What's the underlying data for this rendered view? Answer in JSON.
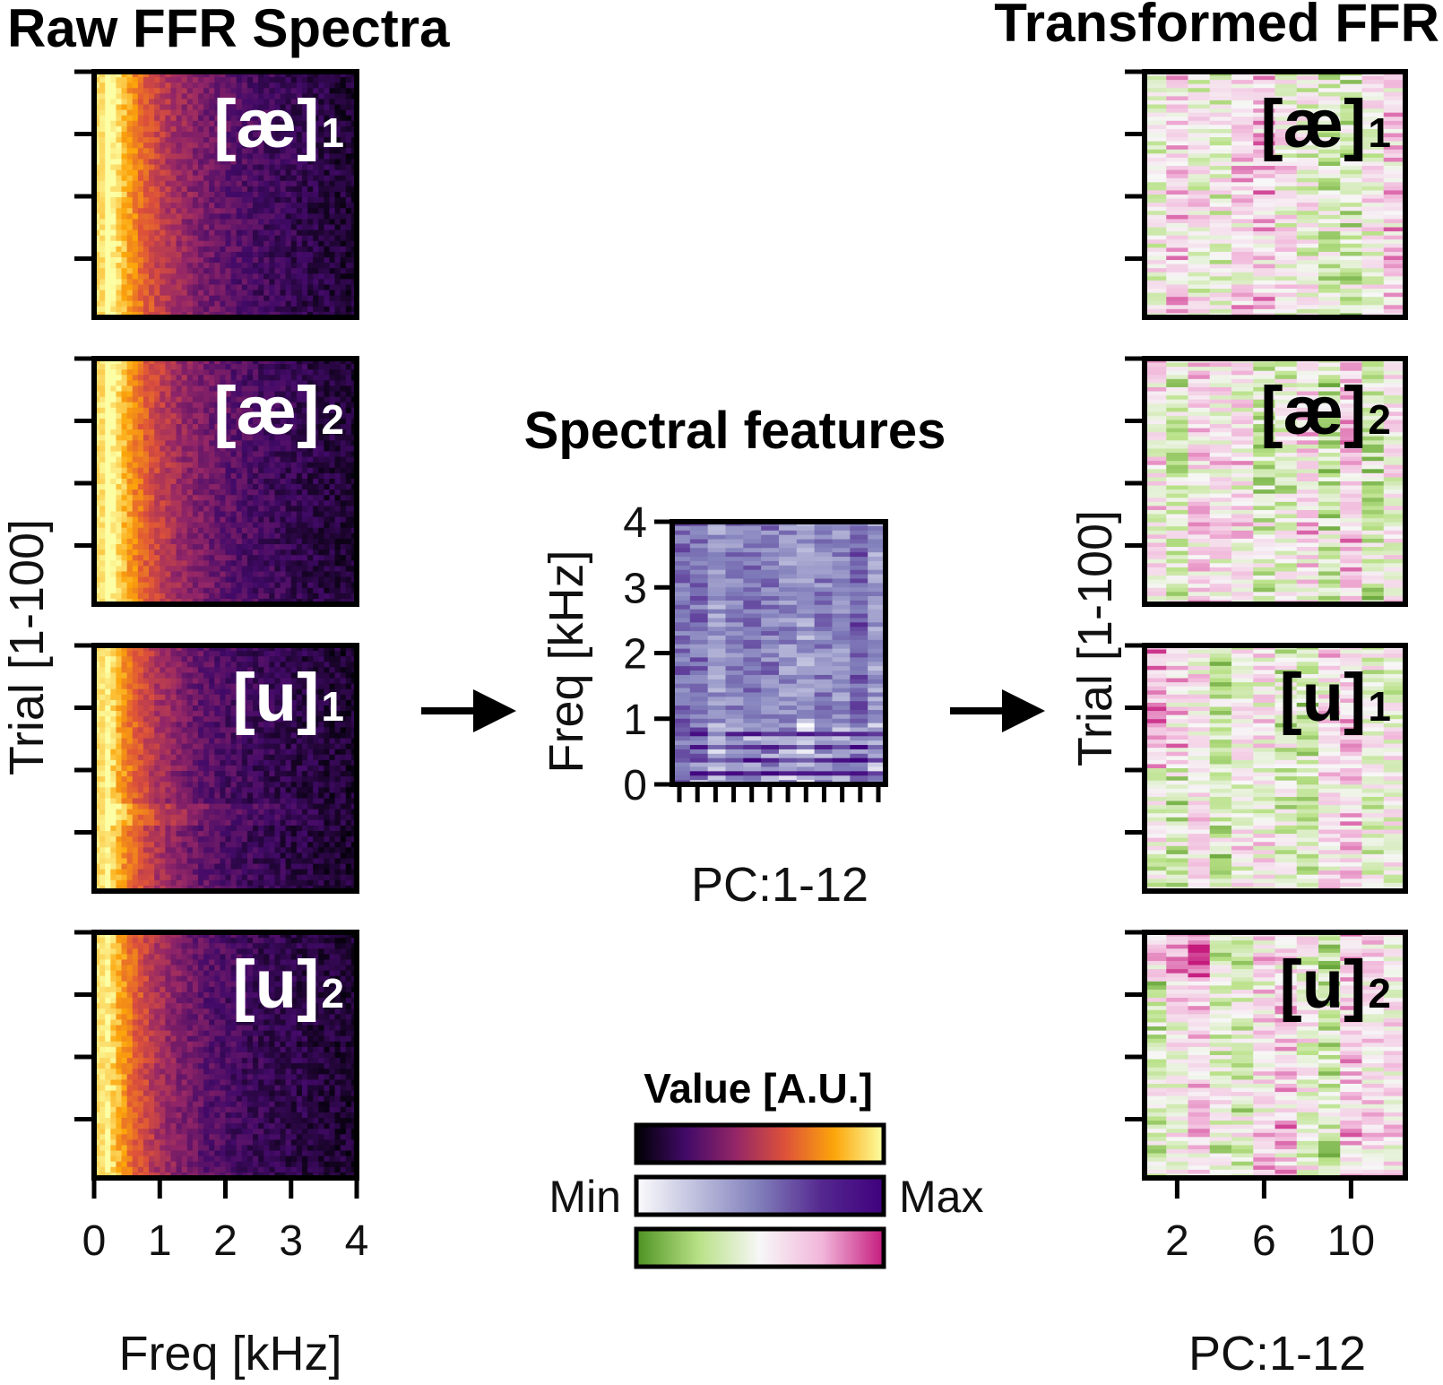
{
  "chart_data": [
    {
      "type": "heatmap",
      "title": "Raw FFR Spectra",
      "xlabel": "Freq [kHz]",
      "ylabel": "Trial [1-100]",
      "xlim": [
        0,
        4
      ],
      "xticks": [
        "0",
        "1",
        "2",
        "3",
        "4"
      ],
      "colormap": "inferno",
      "panels": [
        {
          "label": "[æ]",
          "sub": "1"
        },
        {
          "label": "[æ]",
          "sub": "2"
        },
        {
          "label": "[u]",
          "sub": "1"
        },
        {
          "label": "[u]",
          "sub": "2"
        }
      ]
    },
    {
      "type": "heatmap",
      "title": "Spectral features",
      "xlabel": "PC:1-12",
      "ylabel": "Freq [kHz]",
      "ylim": [
        0,
        4
      ],
      "yticks": [
        "0",
        "1",
        "2",
        "3",
        "4"
      ],
      "n_components": 12,
      "colormap": "purples"
    },
    {
      "type": "heatmap",
      "title": "Transformed FFR",
      "xlabel": "PC:1-12",
      "ylabel": "Trial [1-100]",
      "xticks": [
        "2",
        "6",
        "10"
      ],
      "n_components": 12,
      "colormap": "PiYG (green-pink)",
      "panels": [
        {
          "label": "[æ]",
          "sub": "1"
        },
        {
          "label": "[æ]",
          "sub": "2"
        },
        {
          "label": "[u]",
          "sub": "1"
        },
        {
          "label": "[u]",
          "sub": "2"
        }
      ]
    }
  ],
  "colorbar": {
    "title": "Value [A.U.]",
    "min_label": "Min",
    "max_label": "Max",
    "scales": [
      {
        "name": "inferno",
        "colors": [
          "#000004",
          "#420a68",
          "#932667",
          "#dd513a",
          "#fca50a",
          "#fcffa4"
        ]
      },
      {
        "name": "purples",
        "colors": [
          "#fcfbfd",
          "#bcbddc",
          "#807dba",
          "#54278f",
          "#3f007d"
        ]
      },
      {
        "name": "piyg",
        "colors": [
          "#4d9221",
          "#b8e186",
          "#f7f7f7",
          "#f1b6da",
          "#c51b7d"
        ]
      }
    ]
  }
}
